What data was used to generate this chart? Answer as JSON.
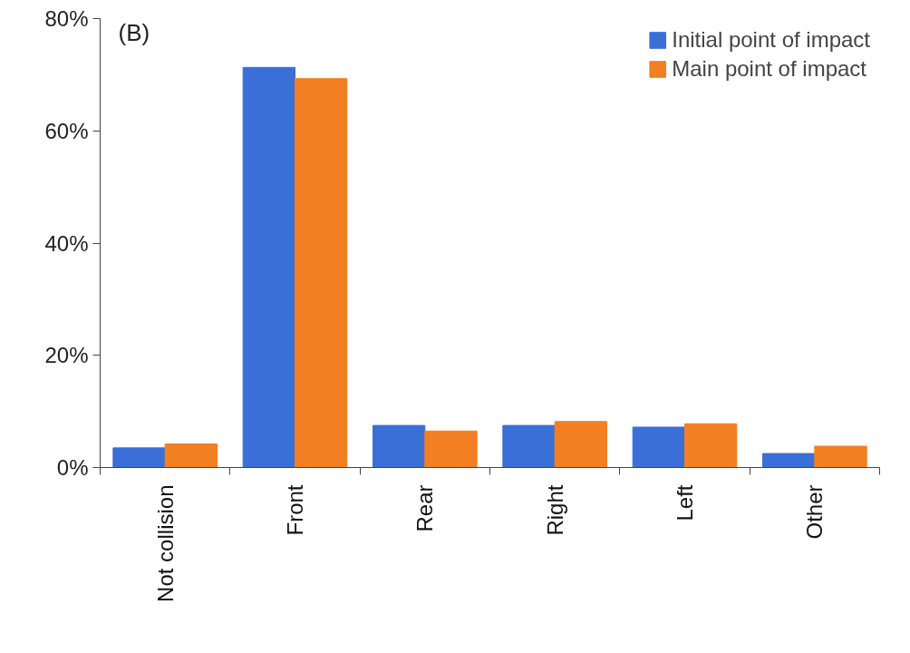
{
  "chart_data": {
    "type": "bar",
    "categories": [
      "Not collision",
      "Front",
      "Rear",
      "Right",
      "Left",
      "Other"
    ],
    "series": [
      {
        "name": "Initial point of impact",
        "color": "#3a6fd8",
        "values": [
          3.5,
          71.3,
          7.5,
          7.5,
          7.2,
          2.5
        ]
      },
      {
        "name": "Main point of impact",
        "color": "#f27f22",
        "values": [
          4.2,
          69.3,
          6.5,
          8.2,
          7.8,
          3.8
        ]
      }
    ],
    "ylim": [
      0,
      80
    ],
    "yticks": [
      {
        "value": 0,
        "label": "0%"
      },
      {
        "value": 20,
        "label": "20%"
      },
      {
        "value": 40,
        "label": "40%"
      },
      {
        "value": 60,
        "label": "60%"
      },
      {
        "value": 80,
        "label": "80%"
      }
    ],
    "annotations": [
      "(B)"
    ],
    "grid": false,
    "legend": "top right"
  }
}
